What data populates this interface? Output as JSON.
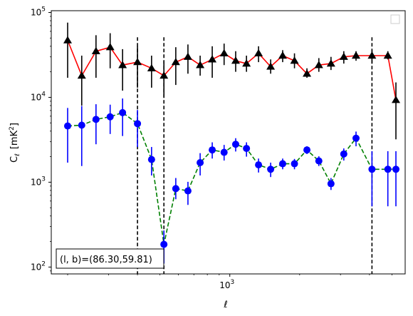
{
  "chart_data": {
    "type": "line",
    "xscale": "log",
    "yscale": "log",
    "xlim": [
      170,
      5700
    ],
    "ylim": [
      83,
      105000
    ],
    "xlabel": "ℓ",
    "ylabel_main": "C",
    "ylabel_sub": "ℓ",
    "ylabel_unit": "[mK",
    "ylabel_unit_sup": "2",
    "ylabel_unit_close": "]",
    "x_ticks": [
      {
        "value": 1000,
        "base": "10",
        "exp": "3"
      }
    ],
    "y_ticks": [
      {
        "value": 100,
        "base": "10",
        "exp": "2"
      },
      {
        "value": 1000,
        "base": "10",
        "exp": "3"
      },
      {
        "value": 10000,
        "base": "10",
        "exp": "4"
      },
      {
        "value": 100000,
        "base": "10",
        "exp": "5"
      }
    ],
    "annotation": "(l, b)=(86.30,59.81)",
    "legend": "top-right, empty",
    "vlines": [
      400,
      520,
      4100
    ],
    "series": [
      {
        "marker": "triangle",
        "color": "#000000",
        "line_color": "#ff0000",
        "line_style": "solid",
        "x": [
          200,
          230,
          265,
          305,
          345,
          400,
          460,
          520,
          585,
          660,
          745,
          840,
          945,
          1060,
          1180,
          1330,
          1500,
          1690,
          1900,
          2150,
          2420,
          2730,
          3100,
          3500,
          4100,
          4800,
          5200
        ],
        "y": [
          47000,
          18000,
          35000,
          39000,
          24000,
          26000,
          22000,
          18000,
          26000,
          30000,
          24000,
          28000,
          33000,
          27000,
          25000,
          33000,
          23000,
          31000,
          27000,
          19000,
          24000,
          25000,
          30000,
          31000,
          31000,
          31000,
          9300
        ],
        "err_low": [
          17000,
          8000,
          17000,
          22000,
          12000,
          13000,
          13000,
          10000,
          14000,
          19000,
          18000,
          17000,
          24000,
          20000,
          20000,
          26000,
          19000,
          26000,
          22000,
          17000,
          20000,
          21000,
          25000,
          27000,
          25000,
          28000,
          3200
        ],
        "err_high": [
          76000,
          31000,
          54000,
          57000,
          37000,
          40000,
          31000,
          27000,
          39000,
          42000,
          31000,
          40000,
          43000,
          35000,
          31000,
          40000,
          28000,
          36000,
          33000,
          22000,
          29000,
          30000,
          35000,
          35000,
          36000,
          35000,
          15000
        ]
      },
      {
        "marker": "circle",
        "color": "#0000ff",
        "line_color": "#008000",
        "line_style": "dashed",
        "x": [
          200,
          230,
          265,
          305,
          345,
          400,
          460,
          520,
          585,
          660,
          745,
          840,
          945,
          1060,
          1180,
          1330,
          1500,
          1690,
          1900,
          2150,
          2420,
          2730,
          3100,
          3500,
          4100,
          4800,
          5200
        ],
        "y": [
          4600,
          4700,
          5500,
          5900,
          6600,
          4900,
          1850,
          185,
          840,
          790,
          1700,
          2400,
          2250,
          2800,
          2500,
          1600,
          1420,
          1650,
          1650,
          2400,
          1780,
          960,
          2150,
          3300,
          1420,
          1420,
          1420
        ],
        "err_low": [
          1700,
          1550,
          2800,
          3700,
          3500,
          2600,
          1200,
          110,
          630,
          540,
          1200,
          1900,
          1800,
          2300,
          2000,
          1300,
          1150,
          1420,
          1420,
          2150,
          1550,
          810,
          1800,
          2650,
          520,
          520,
          520
        ],
        "err_high": [
          7500,
          7900,
          8300,
          8200,
          9700,
          7100,
          2600,
          270,
          1120,
          1010,
          2200,
          2950,
          2750,
          3300,
          2950,
          1900,
          1700,
          1900,
          1880,
          2650,
          2020,
          1120,
          2500,
          3950,
          2320,
          2320,
          2320
        ]
      }
    ]
  }
}
